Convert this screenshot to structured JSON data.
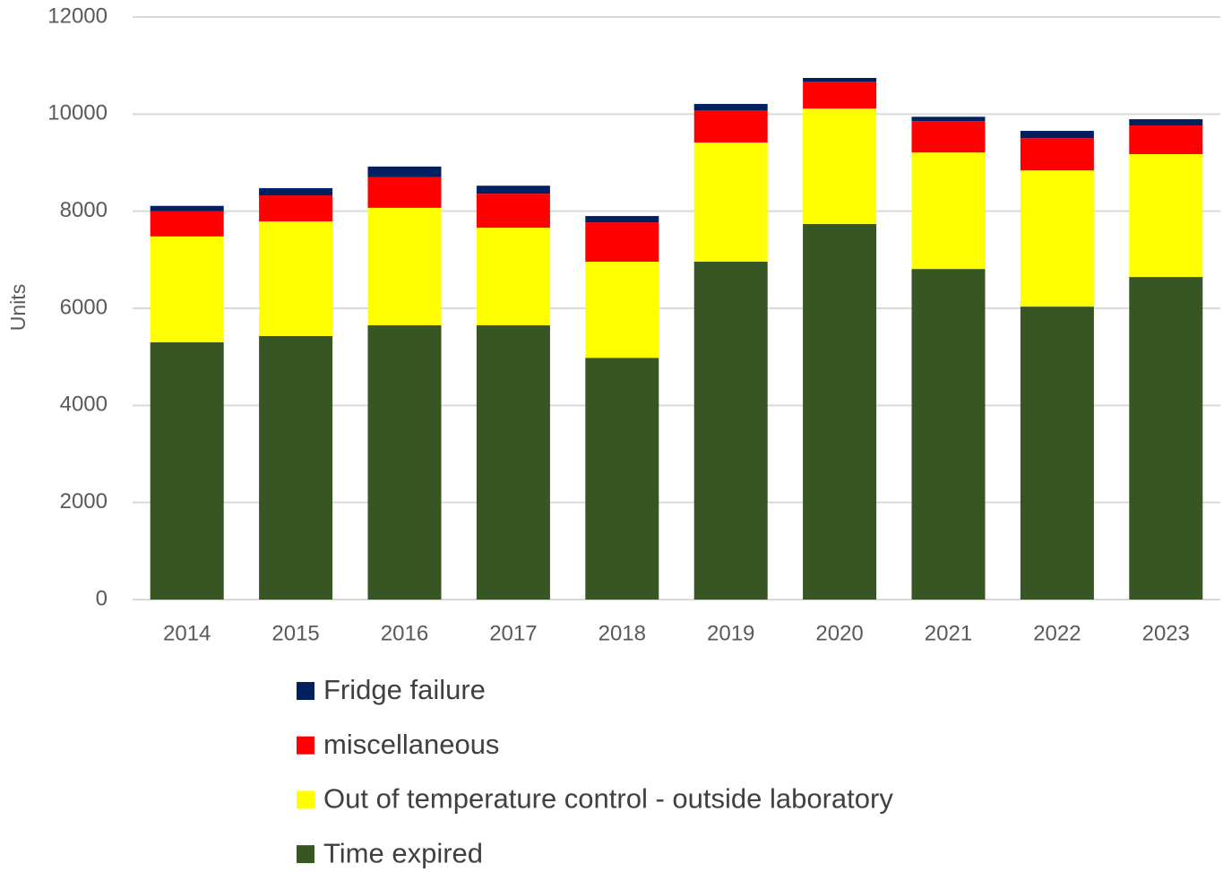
{
  "chart_data": {
    "type": "stacked_bar",
    "y_label": "Units",
    "categories": [
      "2014",
      "2015",
      "2016",
      "2017",
      "2018",
      "2019",
      "2020",
      "2021",
      "2022",
      "2023"
    ],
    "series": [
      {
        "name": "Time expired",
        "color": "#375623",
        "values": [
          5300,
          5430,
          5650,
          5650,
          4980,
          6960,
          7735,
          6810,
          6035,
          6645
        ]
      },
      {
        "name": "Out of temperature control - outside laboratory",
        "color": "#ffff00",
        "values": [
          2180,
          2360,
          2420,
          2010,
          1980,
          2455,
          2380,
          2400,
          2805,
          2530
        ]
      },
      {
        "name": "miscellaneous",
        "color": "#ff0000",
        "values": [
          520,
          535,
          630,
          700,
          810,
          665,
          555,
          645,
          665,
          590
        ]
      },
      {
        "name": "Fridge failure",
        "color": "#002060",
        "values": [
          110,
          150,
          220,
          165,
          130,
          130,
          75,
          90,
          150,
          130
        ]
      }
    ],
    "ylim": [
      0,
      12000
    ],
    "yticks": [
      0,
      2000,
      4000,
      6000,
      8000,
      10000,
      12000
    ],
    "grid": true
  }
}
